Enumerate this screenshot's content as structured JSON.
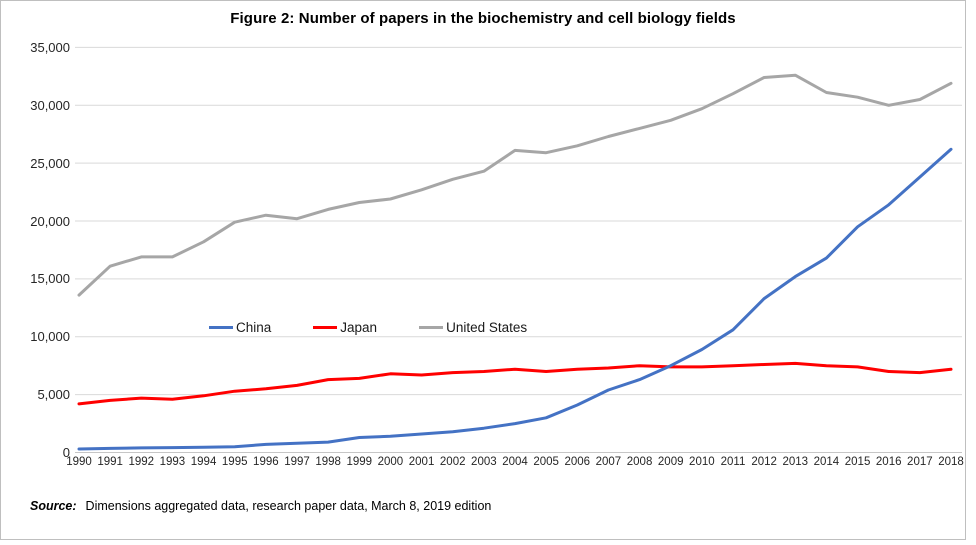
{
  "title": "Figure 2: Number of papers in the biochemistry and cell biology fields",
  "source": {
    "label": "Source:",
    "text": "Dimensions aggregated data, research paper data, March 8, 2019 edition"
  },
  "colors": {
    "china": "#4472C4",
    "japan": "#FF0000",
    "united_states": "#A6A6A6",
    "gridline": "#D9D9D9",
    "axis_line": "#C6C6C6",
    "frame_border": "#BFBFBF",
    "text": "#262626"
  },
  "chart_data": {
    "type": "line",
    "title": "Figure 2: Number of papers in the biochemistry and cell biology fields",
    "x": [
      "1990",
      "1991",
      "1992",
      "1993",
      "1994",
      "1995",
      "1996",
      "1997",
      "1998",
      "1999",
      "2000",
      "2001",
      "2002",
      "2003",
      "2004",
      "2005",
      "2006",
      "2007",
      "2008",
      "2009",
      "2010",
      "2011",
      "2012",
      "2013",
      "2014",
      "2015",
      "2016",
      "2017",
      "2018"
    ],
    "series": [
      {
        "name": "China",
        "color": "#4472C4",
        "values": [
          300,
          350,
          400,
          420,
          450,
          500,
          700,
          800,
          900,
          1300,
          1400,
          1600,
          1800,
          2100,
          2500,
          3000,
          4100,
          5400,
          6300,
          7500,
          8900,
          10600,
          13300,
          15200,
          16800,
          19500,
          21400,
          23800,
          26200
        ]
      },
      {
        "name": "Japan",
        "color": "#FF0000",
        "values": [
          4200,
          4500,
          4700,
          4600,
          4900,
          5300,
          5500,
          5800,
          6300,
          6400,
          6800,
          6700,
          6900,
          7000,
          7200,
          7000,
          7200,
          7300,
          7500,
          7400,
          7400,
          7500,
          7600,
          7700,
          7500,
          7400,
          7000,
          6900,
          7200
        ]
      },
      {
        "name": "United States",
        "color": "#A6A6A6",
        "values": [
          13600,
          16100,
          16900,
          16900,
          18200,
          19900,
          20500,
          20200,
          21000,
          21600,
          21900,
          22700,
          23600,
          24300,
          26100,
          25900,
          26500,
          27300,
          28000,
          28700,
          29700,
          31000,
          32400,
          32600,
          31100,
          30700,
          30000,
          30500,
          31900
        ]
      }
    ],
    "ylim": [
      0,
      35000
    ],
    "yticks": [
      0,
      5000,
      10000,
      15000,
      20000,
      25000,
      30000,
      35000
    ],
    "ytick_labels": [
      "0",
      "5,000",
      "10,000",
      "15,000",
      "20,000",
      "25,000",
      "30,000",
      "35,000"
    ],
    "xlabel": "",
    "ylabel": "",
    "grid": true,
    "legend_position": "inside-center-left"
  }
}
